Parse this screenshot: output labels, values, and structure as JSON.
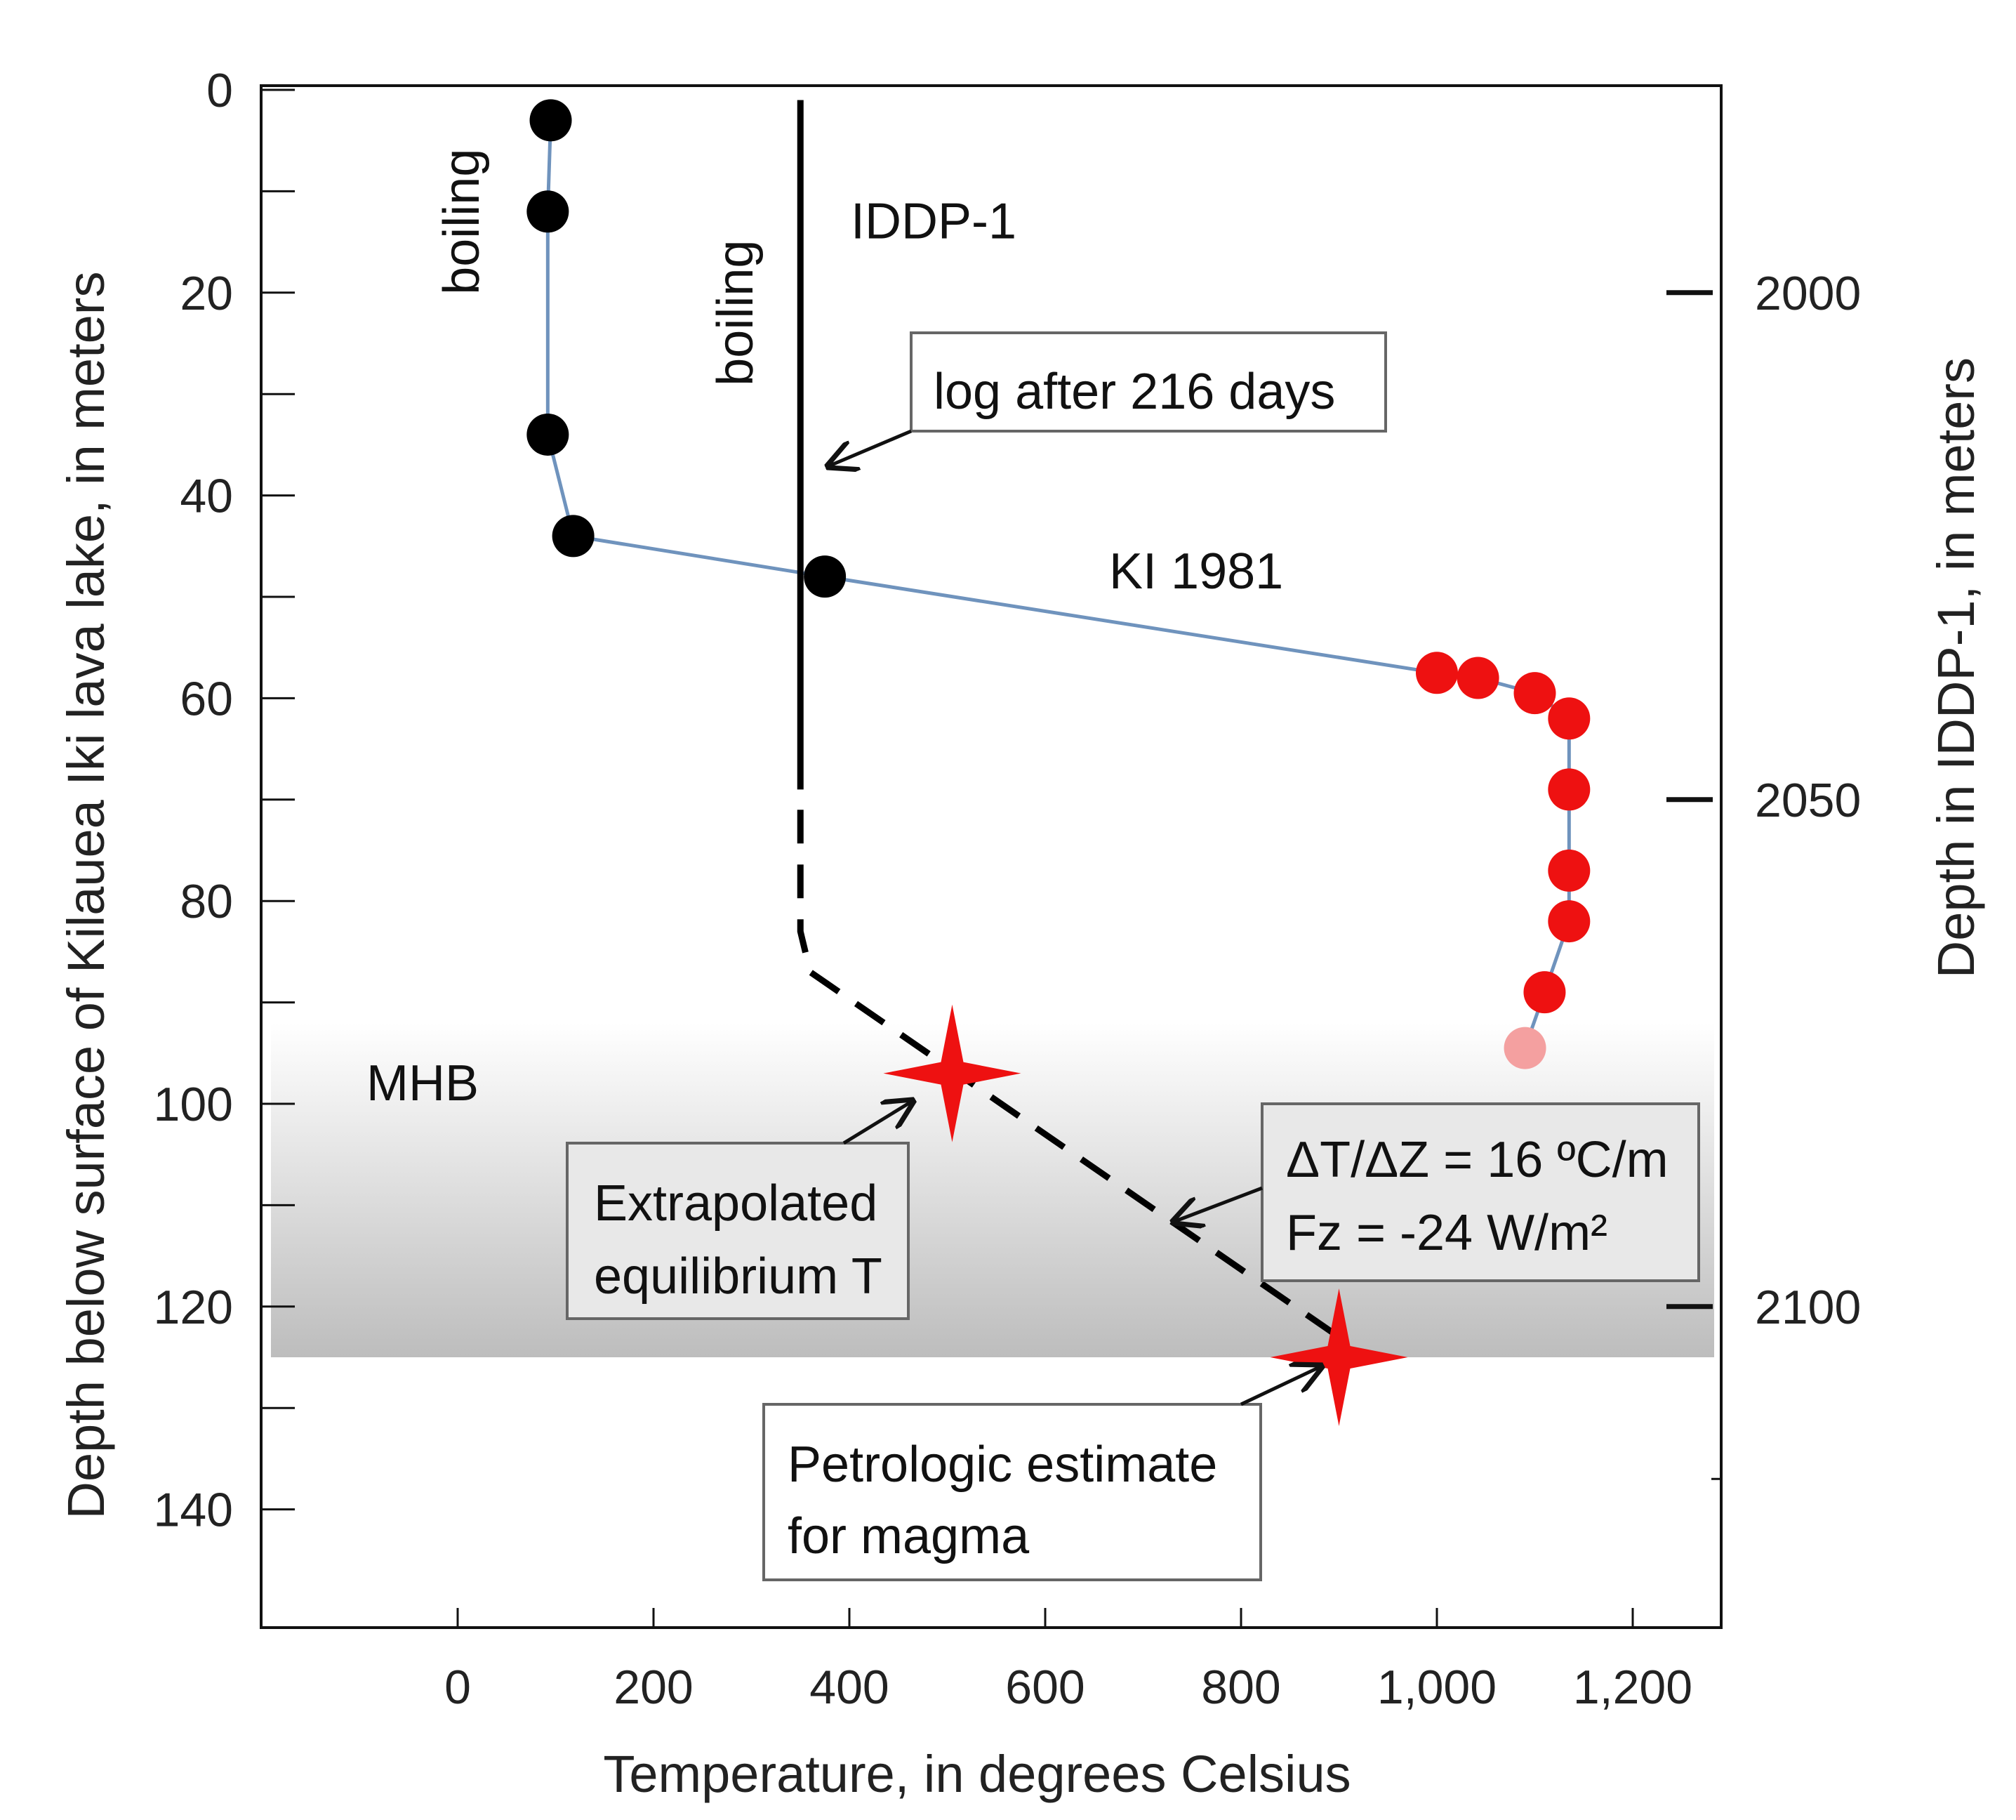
{
  "chart_data": {
    "type": "scatter",
    "title": "",
    "xlabel": "Temperature, in degrees Celsius",
    "ylabel": "Depth below surface of Kilauea Iki lava lake, in meters",
    "ylabel_right": "Depth in IDDP-1, in meters",
    "xlim": [
      -200,
      1300
    ],
    "ylim": [
      0,
      150
    ],
    "x_ticks": [
      0,
      200,
      400,
      600,
      800,
      1000,
      1200
    ],
    "x_tick_labels": [
      "0",
      "200",
      "400",
      "600",
      "800",
      "1,000",
      "1,200"
    ],
    "y_ticks": [
      0,
      20,
      40,
      60,
      80,
      100,
      120,
      140
    ],
    "y_tick_labels": [
      "0",
      "20",
      "40",
      "60",
      "80",
      "100",
      "120",
      "140"
    ],
    "right_ticks": [
      {
        "label": "2000",
        "depth_left": 20
      },
      {
        "label": "2050",
        "depth_left": 70
      },
      {
        "label": "2100",
        "depth_left": 120
      }
    ],
    "colors": {
      "black_points": "#000000",
      "red_points": "#ee1111",
      "faded_point": "#f4a0a0",
      "ki_line": "#6f93bd",
      "iddp_line": "#000000",
      "stars": "#ee1111",
      "mhb_band": "#c8c8c8"
    },
    "series": [
      {
        "name": "KI 1981",
        "line": true,
        "points": [
          {
            "x": 95,
            "y": 3,
            "color": "black"
          },
          {
            "x": 92,
            "y": 12,
            "color": "black"
          },
          {
            "x": 92,
            "y": 34,
            "color": "black"
          },
          {
            "x": 118,
            "y": 44,
            "color": "black"
          },
          {
            "x": 375,
            "y": 48,
            "color": "black"
          },
          {
            "x": 1000,
            "y": 57.5,
            "color": "red"
          },
          {
            "x": 1042,
            "y": 58,
            "color": "red"
          },
          {
            "x": 1100,
            "y": 59.5,
            "color": "red"
          },
          {
            "x": 1135,
            "y": 62,
            "color": "red"
          },
          {
            "x": 1135,
            "y": 69,
            "color": "red"
          },
          {
            "x": 1135,
            "y": 77,
            "color": "red"
          },
          {
            "x": 1135,
            "y": 82,
            "color": "red"
          },
          {
            "x": 1110,
            "y": 89,
            "color": "red"
          },
          {
            "x": 1090,
            "y": 94.5,
            "color": "faded"
          }
        ]
      },
      {
        "name": "IDDP-1",
        "solid": [
          {
            "x": 350,
            "y": 1
          },
          {
            "x": 350,
            "y": 69
          }
        ],
        "dashed": [
          {
            "x": 350,
            "y": 71
          },
          {
            "x": 350,
            "y": 83
          },
          {
            "x": 360,
            "y": 87
          },
          {
            "x": 450,
            "y": 93
          },
          {
            "x": 900,
            "y": 123
          }
        ]
      }
    ],
    "stars": [
      {
        "name": "Extrapolated equilibrium T",
        "x": 505,
        "y": 97
      },
      {
        "name": "Petrologic estimate for magma",
        "x": 900,
        "y": 125
      }
    ],
    "shaded_band": {
      "label": "MHB",
      "y_from": 92,
      "y_to": 125
    },
    "annotations": {
      "boiling_1": "boiling",
      "boiling_2": "boiling",
      "iddp_label": "IDDP-1",
      "log_label": "log after 216 days",
      "ki_label": "KI 1981",
      "mhb_label": "MHB",
      "extrap_line1": "Extrapolated",
      "extrap_line2": "equilibrium T",
      "gradient_line1": "ΔT/ΔZ = 16 ºC/m",
      "gradient_line2": "Fz = -24 W/m²",
      "petro_line1": "Petrologic estimate",
      "petro_line2": "for magma"
    },
    "grid": false,
    "legend": "none"
  }
}
